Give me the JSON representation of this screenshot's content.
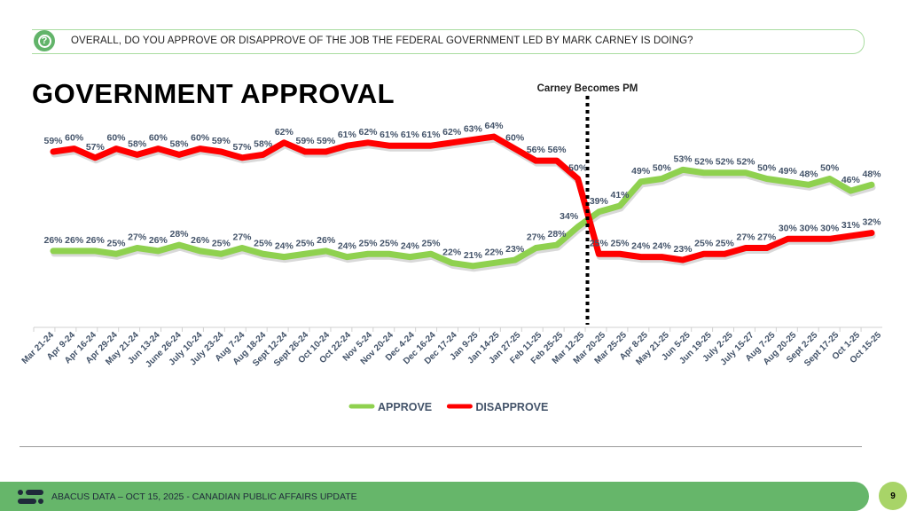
{
  "question": {
    "icon": "question-icon",
    "text": "OVERALL, DO YOU APPROVE OR DISAPPROVE OF THE JOB THE FEDERAL GOVERNMENT LED BY MARK CARNEY IS DOING?"
  },
  "chart_data": {
    "type": "line",
    "title": "GOVERNMENT APPROVAL",
    "xlabel": "",
    "ylabel": "",
    "ylim": [
      0,
      70
    ],
    "grid": false,
    "categories": [
      "Mar 21-24",
      "Apr 9-24",
      "Apr 16-24",
      "Apr 29-24",
      "May 21-24",
      "Jun 13-24",
      "June 26-24",
      "July 10-24",
      "July 23-24",
      "Aug 7-24",
      "Aug 18-24",
      "Sept 12-24",
      "Sept 26-24",
      "Oct 10-24",
      "Oct 22-24",
      "Nov 5-24",
      "Nov 20-24",
      "Dec 4-24",
      "Dec 16-24",
      "Dec 17-24",
      "Jan 9-25",
      "Jan 14-25",
      "Jan 27-25",
      "Feb 11-25",
      "Feb 25-25",
      "Mar 12-25",
      "Mar 20-25",
      "Mar 25-25",
      "Apr 8-25",
      "May 21-25",
      "Jun 5-25",
      "Jun 19-25",
      "July 2-25",
      "July 15-27",
      "Aug 7-25",
      "Aug 20-25",
      "Sept 2-25",
      "Sept 17-25",
      "Oct 1-25",
      "Oct 15-25"
    ],
    "series": [
      {
        "name": "APPROVE",
        "color": "#8fd14f",
        "values": [
          26,
          26,
          26,
          25,
          27,
          26,
          28,
          26,
          25,
          27,
          25,
          24,
          25,
          26,
          24,
          25,
          25,
          24,
          25,
          22,
          21,
          22,
          23,
          27,
          28,
          34,
          39,
          41,
          49,
          50,
          53,
          52,
          52,
          52,
          50,
          49,
          48,
          50,
          46,
          48
        ]
      },
      {
        "name": "DISAPPROVE",
        "color": "#ff0000",
        "values": [
          59,
          60,
          57,
          60,
          58,
          60,
          58,
          60,
          59,
          57,
          58,
          62,
          59,
          59,
          61,
          62,
          61,
          61,
          61,
          62,
          63,
          64,
          60,
          56,
          56,
          50,
          25,
          25,
          24,
          24,
          23,
          25,
          25,
          27,
          27,
          30,
          30,
          30,
          31,
          32
        ]
      }
    ],
    "annotations": [
      {
        "text": "Carney Becomes PM",
        "between": [
          "Mar 12-25",
          "Mar 20-25"
        ]
      }
    ],
    "legend": "bottom-center",
    "label_suffix": "%"
  },
  "footer": {
    "text": "ABACUS DATA – OCT 15, 2025 - CANADIAN PUBLIC AFFAIRS UPDATE",
    "page": "9",
    "logo": "abacus-logo"
  },
  "colors": {
    "label": "#44546a",
    "footer": "#66b66a",
    "page_badge": "#a8d468"
  }
}
